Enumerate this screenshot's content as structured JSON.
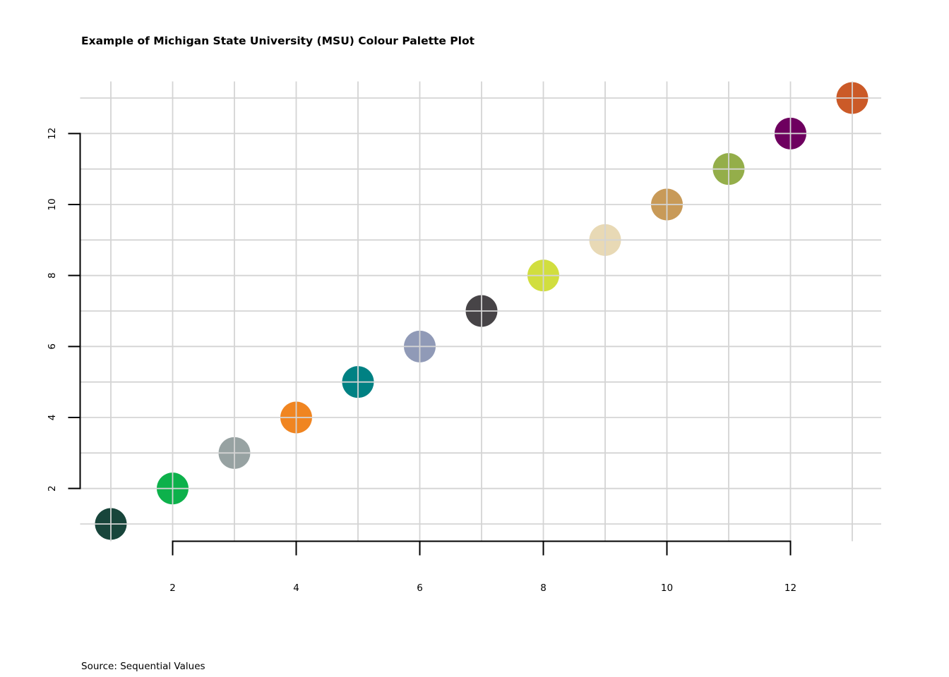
{
  "chart_data": {
    "type": "scatter",
    "title": "Example of Michigan State University (MSU) Colour Palette Plot",
    "caption": "Source: Sequential Values",
    "xlabel": "",
    "ylabel": "",
    "legend": "none",
    "palette": "MSU (Michigan State University) sequential palette",
    "x": [
      1,
      2,
      3,
      4,
      5,
      6,
      7,
      8,
      9,
      10,
      11,
      12,
      13
    ],
    "y": [
      1,
      2,
      3,
      4,
      5,
      6,
      7,
      8,
      9,
      10,
      11,
      12,
      13
    ],
    "point_colors": [
      "#18453B",
      "#0DB14B",
      "#97A2A2",
      "#F08521",
      "#008183",
      "#909AB7",
      "#474447",
      "#D1DE3F",
      "#E8D9B5",
      "#C89A58",
      "#94AE4A",
      "#6E005F",
      "#CB5A28"
    ],
    "marker": "filled-circle",
    "x_ticks": [
      2,
      4,
      6,
      8,
      10,
      12
    ],
    "y_ticks": [
      2,
      4,
      6,
      8,
      10,
      12
    ],
    "xlim": [
      0.5,
      13.5
    ],
    "ylim": [
      0.5,
      13.5
    ],
    "grid": "on",
    "grid_lines_x": [
      1,
      2,
      3,
      4,
      5,
      6,
      7,
      8,
      9,
      10,
      11,
      12,
      13
    ],
    "grid_lines_y": [
      1,
      2,
      3,
      4,
      5,
      6,
      7,
      8,
      9,
      10,
      11,
      12,
      13
    ],
    "grid_color": "#D4D4D4",
    "grid_on_top_of_points": true,
    "axis_color": "#000000",
    "background": "#FFFFFF"
  }
}
